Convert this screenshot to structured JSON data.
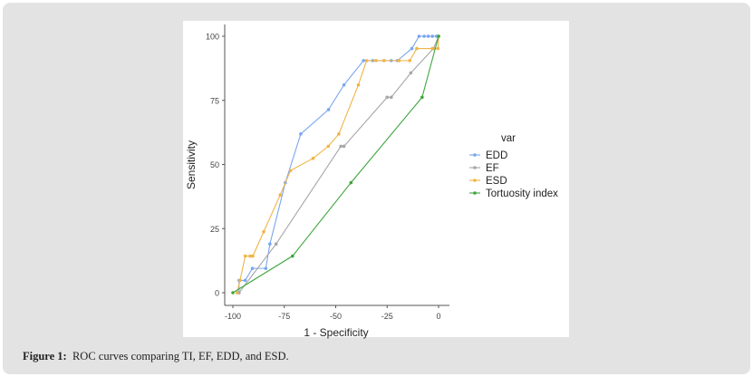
{
  "caption": {
    "label": "Figure 1:",
    "text": "ROC curves comparing TI, EF, EDD, and ESD."
  },
  "chart_data": {
    "type": "line",
    "title": "",
    "xlabel": "1 - Specificity",
    "ylabel": "Sensitivity",
    "xlim": [
      -100,
      0
    ],
    "ylim": [
      0,
      100
    ],
    "xticks": [
      "-100",
      "-75",
      "-50",
      "-25",
      "0"
    ],
    "yticks": [
      "0",
      "25",
      "50",
      "75",
      "100"
    ],
    "legend": {
      "title": "var",
      "position": "right"
    },
    "series": [
      {
        "name": "EDD",
        "color": "#7aa6ef",
        "points": [
          [
            -97,
            0
          ],
          [
            -97,
            4.8
          ],
          [
            -94,
            4.8
          ],
          [
            -90.5,
            9.5
          ],
          [
            -84,
            9.5
          ],
          [
            -82,
            19
          ],
          [
            -74.5,
            42.9
          ],
          [
            -67,
            61.9
          ],
          [
            -53.5,
            71.4
          ],
          [
            -46,
            81
          ],
          [
            -36.5,
            90.5
          ],
          [
            -32,
            90.5
          ],
          [
            -26.5,
            90.5
          ],
          [
            -23,
            90.5
          ],
          [
            -20,
            90.5
          ],
          [
            -13,
            95.2
          ],
          [
            -9.5,
            100
          ],
          [
            -7,
            100
          ],
          [
            -5,
            100
          ],
          [
            -3,
            100
          ],
          [
            -1,
            100
          ],
          [
            0,
            100
          ]
        ]
      },
      {
        "name": "EF",
        "color": "#a6a6a6",
        "points": [
          [
            -97,
            0
          ],
          [
            -79,
            19
          ],
          [
            -47.5,
            57.1
          ],
          [
            -46,
            57.1
          ],
          [
            -25,
            76.2
          ],
          [
            -23,
            76.2
          ],
          [
            -13.5,
            85.7
          ],
          [
            -2.5,
            95.2
          ],
          [
            0,
            100
          ]
        ]
      },
      {
        "name": "ESD",
        "color": "#f0b446",
        "points": [
          [
            -98,
            0
          ],
          [
            -96.5,
            4.8
          ],
          [
            -94,
            14.3
          ],
          [
            -91.6,
            14.3
          ],
          [
            -90.3,
            14.3
          ],
          [
            -85,
            23.8
          ],
          [
            -77,
            38.1
          ],
          [
            -72,
            47.6
          ],
          [
            -61,
            52.4
          ],
          [
            -53.6,
            57.1
          ],
          [
            -48.5,
            61.9
          ],
          [
            -39,
            81
          ],
          [
            -35,
            90.5
          ],
          [
            -30.4,
            90.5
          ],
          [
            -26.5,
            90.5
          ],
          [
            -19.2,
            90.5
          ],
          [
            -14,
            90.5
          ],
          [
            -10.6,
            95.2
          ],
          [
            -3,
            95.2
          ],
          [
            -0.3,
            95.2
          ],
          [
            0,
            100
          ]
        ]
      },
      {
        "name": "Tortuosity index",
        "color": "#3fa63f",
        "points": [
          [
            -100,
            0
          ],
          [
            -71,
            14.3
          ],
          [
            -42.6,
            42.9
          ],
          [
            -8,
            76.2
          ],
          [
            0,
            100
          ]
        ]
      }
    ]
  }
}
